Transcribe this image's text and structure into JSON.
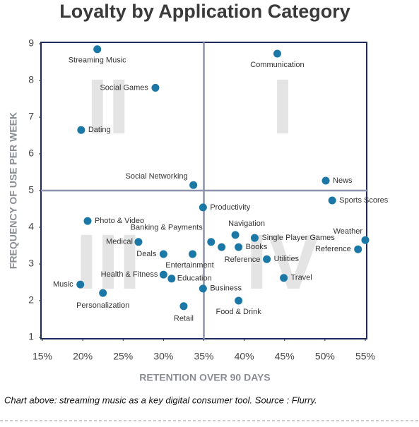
{
  "chart_data": {
    "type": "scatter",
    "title": "Loyalty by Application Category",
    "x_label": "RETENTION OVER 90 DAYS",
    "y_label": "FREQUENCY OF USE PER WEEK",
    "caption": "Chart above: streaming music as a key digital consumer tool. Source : Flurry.",
    "quadrant_labels": [
      "I",
      "II",
      "III",
      "IV"
    ],
    "color": "#1b77a6",
    "labels": [
      "Streaming Music",
      "Communication",
      "Social Games",
      "Dating",
      "Social Networking",
      "News",
      "Sports Scores",
      "Productivity",
      "Photo & Video",
      "Medical",
      "Banking & Payments",
      "Navigation",
      "Single Player Games",
      "Weather",
      "Reference",
      "Reference",
      "Books",
      "Deals",
      "Entertainment",
      "Utilities",
      "Health & Fitness",
      "Education",
      "Travel",
      "Music",
      "Business",
      "Personalization",
      "Food & Drink",
      "Retail"
    ],
    "x": [
      21.8,
      44.1,
      29.0,
      19.8,
      33.7,
      50.1,
      50.9,
      34.9,
      20.6,
      26.9,
      35.9,
      38.9,
      41.3,
      55.0,
      54.1,
      37.2,
      39.3,
      30.0,
      33.6,
      42.8,
      30.0,
      31.0,
      44.9,
      19.7,
      34.9,
      22.5,
      39.3,
      32.5
    ],
    "values": [
      8.85,
      8.73,
      7.8,
      6.65,
      5.15,
      5.27,
      4.73,
      4.54,
      4.17,
      3.6,
      3.6,
      3.79,
      3.71,
      3.65,
      3.4,
      3.46,
      3.46,
      3.27,
      3.27,
      3.13,
      2.71,
      2.6,
      2.62,
      2.44,
      2.33,
      2.21,
      2.0,
      1.85
    ],
    "xlim": [
      15,
      55
    ],
    "xticks": [
      {
        "value": 15,
        "label": "15%"
      },
      {
        "value": 20,
        "label": "20%"
      },
      {
        "value": 25,
        "label": "25%"
      },
      {
        "value": 30,
        "label": "30%"
      },
      {
        "value": 35,
        "label": "35%"
      },
      {
        "value": 40,
        "label": "40%"
      },
      {
        "value": 45,
        "label": "45%"
      },
      {
        "value": 50,
        "label": "50%"
      },
      {
        "value": 55,
        "label": "55%"
      }
    ],
    "ylim": [
      1,
      9
    ],
    "yticks": [
      1,
      2,
      3,
      4,
      5,
      6,
      7,
      8,
      9
    ],
    "divider_x": 35,
    "divider_y": 5
  }
}
